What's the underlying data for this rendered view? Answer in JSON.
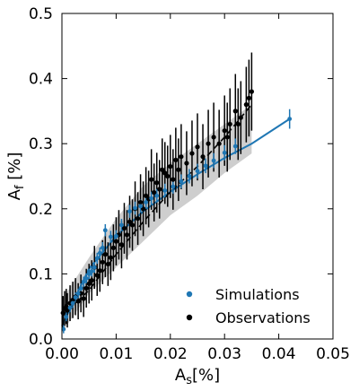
{
  "chart_data": {
    "type": "scatter",
    "xlabel": {
      "main": "A",
      "sub": "s",
      "rest": "[%]"
    },
    "ylabel": {
      "main": "A",
      "sub": "f",
      "rest": " [%]"
    },
    "xlim": [
      0.0,
      0.05
    ],
    "ylim": [
      0.0,
      0.5
    ],
    "x_ticks": [
      "0.00",
      "0.01",
      "0.02",
      "0.03",
      "0.04",
      "0.05"
    ],
    "y_ticks": [
      "0.0",
      "0.1",
      "0.2",
      "0.3",
      "0.4",
      "0.5"
    ],
    "grid": false,
    "legend_position": "lower-right",
    "series": [
      {
        "name": "Simulations",
        "color": "#1f77b4",
        "points": [
          [
            0.0003,
            0.015
          ],
          [
            0.0008,
            0.034
          ],
          [
            0.0015,
            0.048
          ],
          [
            0.002,
            0.055
          ],
          [
            0.0025,
            0.064
          ],
          [
            0.003,
            0.07
          ],
          [
            0.0035,
            0.078
          ],
          [
            0.004,
            0.088
          ],
          [
            0.0045,
            0.093
          ],
          [
            0.005,
            0.1
          ],
          [
            0.0055,
            0.104
          ],
          [
            0.006,
            0.11
          ],
          [
            0.0065,
            0.124
          ],
          [
            0.007,
            0.132
          ],
          [
            0.0075,
            0.14
          ],
          [
            0.008,
            0.167
          ],
          [
            0.009,
            0.157
          ],
          [
            0.01,
            0.158
          ],
          [
            0.011,
            0.175
          ],
          [
            0.0125,
            0.196
          ],
          [
            0.0135,
            0.201
          ],
          [
            0.0145,
            0.204
          ],
          [
            0.0155,
            0.21
          ],
          [
            0.0165,
            0.216
          ],
          [
            0.0175,
            0.22
          ],
          [
            0.019,
            0.228
          ],
          [
            0.0205,
            0.234
          ],
          [
            0.022,
            0.242
          ],
          [
            0.0235,
            0.25
          ],
          [
            0.025,
            0.258
          ],
          [
            0.0265,
            0.266
          ],
          [
            0.028,
            0.274
          ],
          [
            0.03,
            0.286
          ],
          [
            0.032,
            0.296
          ],
          [
            0.042,
            0.338
          ]
        ],
        "fit": [
          [
            0.0,
            0.02
          ],
          [
            0.005,
            0.108
          ],
          [
            0.01,
            0.158
          ],
          [
            0.015,
            0.196
          ],
          [
            0.02,
            0.226
          ],
          [
            0.025,
            0.253
          ],
          [
            0.03,
            0.278
          ],
          [
            0.035,
            0.3
          ],
          [
            0.042,
            0.338
          ]
        ]
      },
      {
        "name": "Observations",
        "color": "#000000",
        "points": [
          [
            0.0002,
            0.04
          ],
          [
            0.0005,
            0.047
          ],
          [
            0.0008,
            0.05
          ],
          [
            0.001,
            0.044
          ],
          [
            0.0015,
            0.055
          ],
          [
            0.002,
            0.06
          ],
          [
            0.0025,
            0.065
          ],
          [
            0.003,
            0.058
          ],
          [
            0.0035,
            0.07
          ],
          [
            0.004,
            0.062
          ],
          [
            0.0045,
            0.078
          ],
          [
            0.005,
            0.085
          ],
          [
            0.0055,
            0.09
          ],
          [
            0.006,
            0.11
          ],
          [
            0.0065,
            0.098
          ],
          [
            0.007,
            0.105
          ],
          [
            0.0075,
            0.118
          ],
          [
            0.008,
            0.13
          ],
          [
            0.0085,
            0.115
          ],
          [
            0.009,
            0.125
          ],
          [
            0.0095,
            0.14
          ],
          [
            0.01,
            0.15
          ],
          [
            0.0105,
            0.16
          ],
          [
            0.011,
            0.145
          ],
          [
            0.0115,
            0.17
          ],
          [
            0.012,
            0.16
          ],
          [
            0.0125,
            0.18
          ],
          [
            0.013,
            0.175
          ],
          [
            0.0135,
            0.2
          ],
          [
            0.014,
            0.185
          ],
          [
            0.0145,
            0.21
          ],
          [
            0.015,
            0.2
          ],
          [
            0.0155,
            0.22
          ],
          [
            0.016,
            0.215
          ],
          [
            0.0165,
            0.245
          ],
          [
            0.017,
            0.225
          ],
          [
            0.0175,
            0.24
          ],
          [
            0.018,
            0.23
          ],
          [
            0.0185,
            0.26
          ],
          [
            0.019,
            0.255
          ],
          [
            0.0195,
            0.25
          ],
          [
            0.02,
            0.265
          ],
          [
            0.0205,
            0.245
          ],
          [
            0.021,
            0.275
          ],
          [
            0.0215,
            0.26
          ],
          [
            0.022,
            0.28
          ],
          [
            0.023,
            0.27
          ],
          [
            0.024,
            0.285
          ],
          [
            0.025,
            0.295
          ],
          [
            0.026,
            0.28
          ],
          [
            0.027,
            0.3
          ],
          [
            0.028,
            0.31
          ],
          [
            0.029,
            0.3
          ],
          [
            0.03,
            0.32
          ],
          [
            0.0305,
            0.31
          ],
          [
            0.031,
            0.33
          ],
          [
            0.032,
            0.35
          ],
          [
            0.0325,
            0.33
          ],
          [
            0.033,
            0.34
          ],
          [
            0.034,
            0.36
          ],
          [
            0.0345,
            0.37
          ],
          [
            0.035,
            0.38
          ]
        ],
        "fit": [
          [
            0.0,
            0.035
          ],
          [
            0.005,
            0.075
          ],
          [
            0.01,
            0.13
          ],
          [
            0.015,
            0.18
          ],
          [
            0.02,
            0.226
          ],
          [
            0.025,
            0.265
          ],
          [
            0.03,
            0.31
          ],
          [
            0.035,
            0.36
          ]
        ]
      }
    ],
    "band": {
      "color": "#bdbdbd",
      "upper": [
        [
          0.0,
          0.06
        ],
        [
          0.005,
          0.125
        ],
        [
          0.01,
          0.185
        ],
        [
          0.015,
          0.235
        ],
        [
          0.02,
          0.27
        ],
        [
          0.025,
          0.3
        ],
        [
          0.03,
          0.33
        ],
        [
          0.035,
          0.36
        ]
      ],
      "lower": [
        [
          0.0,
          0.01
        ],
        [
          0.005,
          0.07
        ],
        [
          0.01,
          0.11
        ],
        [
          0.015,
          0.15
        ],
        [
          0.02,
          0.19
        ],
        [
          0.025,
          0.22
        ],
        [
          0.03,
          0.255
        ],
        [
          0.035,
          0.285
        ]
      ]
    }
  }
}
